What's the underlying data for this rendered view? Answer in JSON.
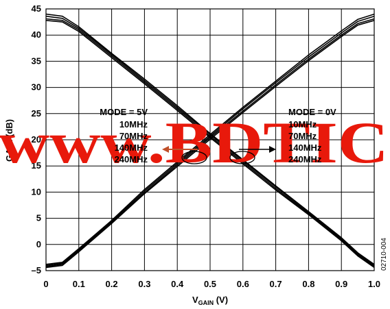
{
  "chart_data": {
    "type": "line",
    "xlabel": {
      "main": "V",
      "sub": "GAIN",
      "unit": " (V)"
    },
    "ylabel": "GAIN (dB)",
    "xlim": [
      0,
      1.0
    ],
    "ylim": [
      -5,
      45
    ],
    "grid": true,
    "x_ticks": [
      "0",
      "0.1",
      "0.2",
      "0.3",
      "0.4",
      "0.5",
      "0.6",
      "0.7",
      "0.8",
      "0.9",
      "1.0"
    ],
    "y_ticks": [
      "45",
      "40",
      "35",
      "30",
      "25",
      "20",
      "15",
      "10",
      "5",
      "0",
      "–5"
    ],
    "groups": [
      {
        "label": "MODE = 5V",
        "series": [
          {
            "name": "10MHz",
            "x": [
              0,
              0.05,
              0.1,
              0.2,
              0.3,
              0.4,
              0.5,
              0.6,
              0.7,
              0.8,
              0.9,
              0.95,
              1.0
            ],
            "y": [
              44.0,
              43.6,
              41.6,
              36.5,
              31.6,
              26.5,
              21.2,
              16.2,
              11.2,
              6.3,
              1.3,
              -1.6,
              -3.8
            ]
          },
          {
            "name": "70MHz",
            "x": [
              0,
              0.05,
              0.1,
              0.2,
              0.3,
              0.4,
              0.5,
              0.6,
              0.7,
              0.8,
              0.9,
              0.95,
              1.0
            ],
            "y": [
              43.6,
              43.2,
              41.3,
              36.3,
              31.3,
              26.2,
              21.0,
              16.0,
              11.0,
              6.1,
              1.1,
              -1.8,
              -4.0
            ]
          },
          {
            "name": "140MHz",
            "x": [
              0,
              0.05,
              0.1,
              0.2,
              0.3,
              0.4,
              0.5,
              0.6,
              0.7,
              0.8,
              0.9,
              0.95,
              1.0
            ],
            "y": [
              43.1,
              42.8,
              41.0,
              36.0,
              31.0,
              25.9,
              20.7,
              15.7,
              10.7,
              5.9,
              0.9,
              -2.0,
              -4.2
            ]
          },
          {
            "name": "240MHz",
            "x": [
              0,
              0.05,
              0.1,
              0.2,
              0.3,
              0.4,
              0.5,
              0.6,
              0.7,
              0.8,
              0.9,
              0.95,
              1.0
            ],
            "y": [
              42.8,
              42.5,
              40.7,
              35.7,
              30.7,
              25.6,
              20.4,
              15.4,
              10.4,
              5.7,
              0.7,
              -2.2,
              -4.4
            ]
          }
        ]
      },
      {
        "label": "MODE = 0V",
        "series": [
          {
            "name": "10MHz",
            "x": [
              0,
              0.05,
              0.1,
              0.2,
              0.3,
              0.4,
              0.5,
              0.6,
              0.7,
              0.8,
              0.9,
              0.95,
              1.0
            ],
            "y": [
              -3.8,
              -3.4,
              -0.8,
              4.6,
              10.5,
              15.8,
              21.0,
              26.2,
              31.2,
              36.2,
              40.8,
              43.0,
              44.0
            ]
          },
          {
            "name": "70MHz",
            "x": [
              0,
              0.05,
              0.1,
              0.2,
              0.3,
              0.4,
              0.5,
              0.6,
              0.7,
              0.8,
              0.9,
              0.95,
              1.0
            ],
            "y": [
              -4.0,
              -3.6,
              -1.0,
              4.4,
              10.2,
              15.5,
              20.7,
              25.9,
              30.9,
              35.8,
              40.4,
              42.6,
              43.6
            ]
          },
          {
            "name": "140MHz",
            "x": [
              0,
              0.05,
              0.1,
              0.2,
              0.3,
              0.4,
              0.5,
              0.6,
              0.7,
              0.8,
              0.9,
              0.95,
              1.0
            ],
            "y": [
              -4.2,
              -3.8,
              -1.2,
              4.2,
              9.9,
              15.2,
              20.4,
              25.5,
              30.5,
              35.4,
              40.0,
              42.2,
              43.1
            ]
          },
          {
            "name": "240MHz",
            "x": [
              0,
              0.05,
              0.1,
              0.2,
              0.3,
              0.4,
              0.5,
              0.6,
              0.7,
              0.8,
              0.9,
              0.95,
              1.0
            ],
            "y": [
              -4.4,
              -4.0,
              -1.4,
              4.0,
              9.7,
              14.9,
              20.1,
              25.2,
              30.2,
              35.1,
              39.7,
              41.9,
              42.8
            ]
          }
        ]
      }
    ],
    "annotations": {
      "left_title": "MODE = 5V",
      "right_title": "MODE = 0V",
      "freqs": [
        "10MHz",
        "70MHz",
        "140MHz",
        "240MHz"
      ],
      "figure_id": "02710-004"
    },
    "colors": {
      "lines": "#000000",
      "grid": "#000000",
      "watermark": "#e8190b",
      "arrow": "#c0502a"
    }
  },
  "watermark": "www.BDTIC"
}
